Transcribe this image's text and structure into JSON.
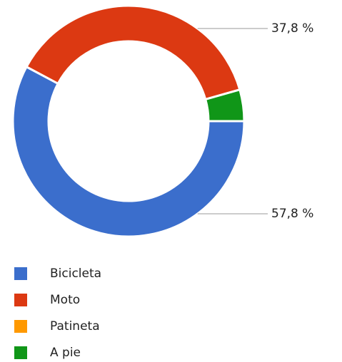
{
  "chart_data": {
    "type": "donut",
    "categories": [
      "Bicicleta",
      "Moto",
      "Patineta",
      "A pie"
    ],
    "values": [
      57.8,
      37.8,
      0,
      4.4
    ],
    "value_labels": [
      "57,8 %",
      "37,8 %",
      null,
      null
    ],
    "colors": [
      "#3b6ecc",
      "#dc3912",
      "#ff9900",
      "#109618"
    ],
    "legend": "bottom"
  }
}
